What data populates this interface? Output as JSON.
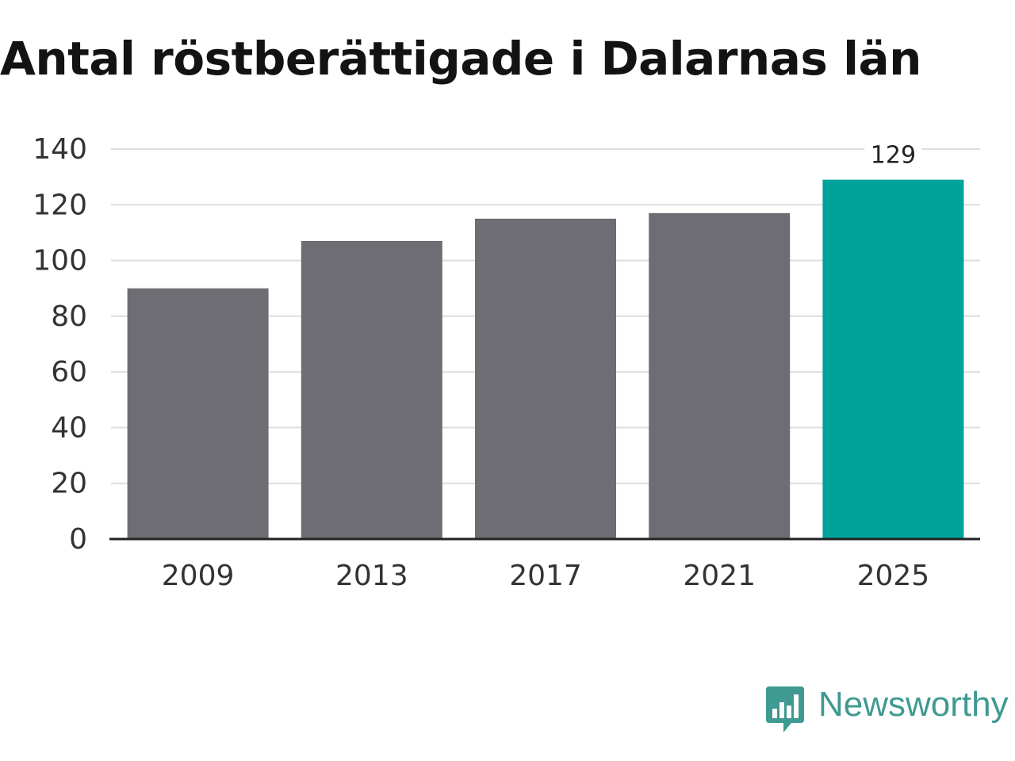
{
  "chart_data": {
    "type": "bar",
    "title": "Antal röstberättigade i Dalarnas län",
    "categories": [
      "2009",
      "2013",
      "2017",
      "2021",
      "2025"
    ],
    "values": [
      90,
      107,
      115,
      117,
      129
    ],
    "ylim": [
      0,
      140
    ],
    "yticks": [
      0,
      20,
      40,
      60,
      80,
      100,
      120,
      140
    ],
    "ytick_labels": [
      "0",
      "20",
      "40",
      "60",
      "80",
      "100",
      "120",
      "140"
    ],
    "data_labels": [
      null,
      null,
      null,
      null,
      "129"
    ],
    "grid": true,
    "colors": {
      "default_bar": "#6e6d73",
      "highlight_bar": "#00a39a",
      "grid": "#dddddd",
      "axis": "#222222"
    },
    "highlight_index": 4
  },
  "branding": {
    "logo_text": "Newsworthy",
    "logo_color": "#3f9a91",
    "logo_icon": "newsworthy-logo-icon"
  }
}
